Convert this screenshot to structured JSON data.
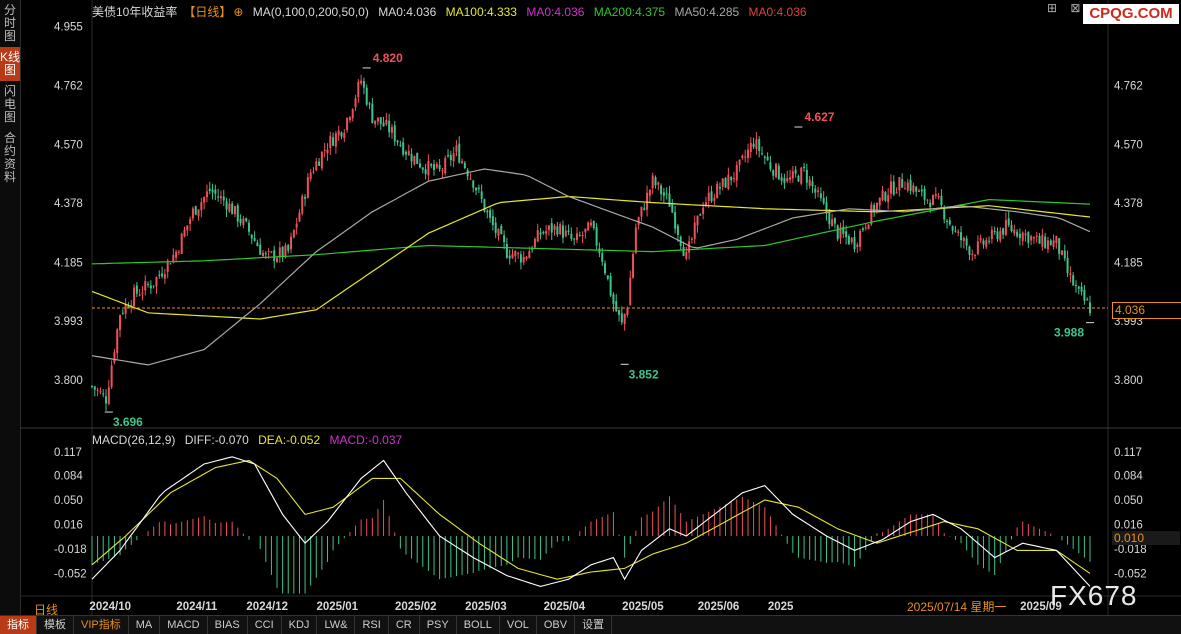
{
  "left_tabs": [
    "分时图",
    "K线图",
    "闪电图",
    "合约资料"
  ],
  "title": "美债10年收益率",
  "period_tag": "【日线】",
  "ma_legend": [
    {
      "label": "MA(0,100,0,200,50,0)",
      "color": "#d8d8d8"
    },
    {
      "label": "MA0:4.036",
      "color": "#d8d8d8"
    },
    {
      "label": "MA100:4.333",
      "color": "#e6e62c"
    },
    {
      "label": "MA0:4.036",
      "color": "#d030d0"
    },
    {
      "label": "MA200:4.375",
      "color": "#2ec82e"
    },
    {
      "label": "MA50:4.285",
      "color": "#a8a8a8"
    },
    {
      "label": "MA0:4.036",
      "color": "#e04040"
    }
  ],
  "macd_legend": [
    {
      "label": "MACD(26,12,9)",
      "color": "#d8d8d8"
    },
    {
      "label": "DIFF:-0.070",
      "color": "#d8d8d8"
    },
    {
      "label": "DEA:-0.052",
      "color": "#e6e62c"
    },
    {
      "label": "MACD:-0.037",
      "color": "#d030d0"
    }
  ],
  "watermark_logo": "CPQG.COM",
  "watermark_fx": "FX678",
  "current_price": "4.036",
  "macd_marker": "0.010",
  "crosshair_date": "2025/07/14 星期一",
  "period_label": "日线",
  "bottom_tabs": [
    "指标",
    "模板",
    "VIP指标",
    "MA",
    "MACD",
    "BIAS",
    "CCI",
    "KDJ",
    "LW&",
    "RSI",
    "CR",
    "PSY",
    "BOLL",
    "VOL",
    "OBV",
    "设置"
  ],
  "colors": {
    "up": "#f0505a",
    "down": "#3cc48c",
    "ma100": "#e6e62c",
    "ma200": "#2ec82e",
    "ma50": "#a8a8a8",
    "dea": "#e6e62c",
    "diff": "#ffffff",
    "current": "#e8901c"
  },
  "chart_data": [
    {
      "type": "candlestick",
      "title": "美债10年收益率",
      "y_ticks": [
        4.955,
        4.762,
        4.57,
        4.378,
        4.185,
        3.993,
        3.8
      ],
      "ylim": [
        3.67,
        4.97
      ],
      "x_ticks": [
        "2024/10",
        "2024/11",
        "2024/12",
        "2025/01",
        "2025/02",
        "2025/03",
        "2025/04",
        "2025/05",
        "2025/06",
        "2025",
        "2025/09"
      ],
      "annotations": [
        {
          "text": "4.820",
          "value": 4.82,
          "color": "#f0505a"
        },
        {
          "text": "4.627",
          "value": 4.627,
          "color": "#f0505a"
        },
        {
          "text": "3.696",
          "value": 3.696,
          "color": "#3cc48c"
        },
        {
          "text": "3.852",
          "value": 3.852,
          "color": "#3cc48c"
        },
        {
          "text": "3.988",
          "value": 3.988,
          "color": "#3cc48c"
        }
      ],
      "close_keypoints": [
        [
          0,
          3.78
        ],
        [
          5,
          3.74
        ],
        [
          10,
          4.02
        ],
        [
          15,
          4.08
        ],
        [
          22,
          4.12
        ],
        [
          30,
          4.22
        ],
        [
          36,
          4.35
        ],
        [
          42,
          4.42
        ],
        [
          48,
          4.38
        ],
        [
          55,
          4.3
        ],
        [
          62,
          4.2
        ],
        [
          70,
          4.22
        ],
        [
          78,
          4.48
        ],
        [
          84,
          4.57
        ],
        [
          90,
          4.63
        ],
        [
          96,
          4.78
        ],
        [
          100,
          4.66
        ],
        [
          106,
          4.62
        ],
        [
          112,
          4.55
        ],
        [
          118,
          4.5
        ],
        [
          124,
          4.48
        ],
        [
          130,
          4.55
        ],
        [
          136,
          4.45
        ],
        [
          142,
          4.32
        ],
        [
          148,
          4.22
        ],
        [
          154,
          4.2
        ],
        [
          160,
          4.28
        ],
        [
          166,
          4.3
        ],
        [
          172,
          4.25
        ],
        [
          178,
          4.3
        ],
        [
          182,
          4.2
        ],
        [
          186,
          4.05
        ],
        [
          189,
          3.98
        ],
        [
          191,
          4.05
        ],
        [
          194,
          4.3
        ],
        [
          200,
          4.45
        ],
        [
          206,
          4.38
        ],
        [
          212,
          4.2
        ],
        [
          218,
          4.38
        ],
        [
          224,
          4.43
        ],
        [
          230,
          4.48
        ],
        [
          236,
          4.58
        ],
        [
          242,
          4.5
        ],
        [
          248,
          4.45
        ],
        [
          254,
          4.48
        ],
        [
          260,
          4.38
        ],
        [
          266,
          4.28
        ],
        [
          272,
          4.25
        ],
        [
          278,
          4.35
        ],
        [
          284,
          4.42
        ],
        [
          290,
          4.45
        ],
        [
          296,
          4.4
        ],
        [
          302,
          4.38
        ],
        [
          308,
          4.28
        ],
        [
          314,
          4.22
        ],
        [
          320,
          4.26
        ],
        [
          326,
          4.3
        ],
        [
          332,
          4.28
        ],
        [
          338,
          4.25
        ],
        [
          344,
          4.25
        ],
        [
          348,
          4.15
        ],
        [
          352,
          4.08
        ],
        [
          356,
          4.036
        ]
      ],
      "ma100_keypoints": [
        [
          0,
          4.09
        ],
        [
          20,
          4.02
        ],
        [
          60,
          4.0
        ],
        [
          80,
          4.03
        ],
        [
          120,
          4.28
        ],
        [
          145,
          4.38
        ],
        [
          170,
          4.4
        ],
        [
          200,
          4.38
        ],
        [
          240,
          4.36
        ],
        [
          280,
          4.35
        ],
        [
          320,
          4.37
        ],
        [
          356,
          4.333
        ]
      ],
      "ma200_keypoints": [
        [
          0,
          4.18
        ],
        [
          40,
          4.19
        ],
        [
          80,
          4.21
        ],
        [
          120,
          4.24
        ],
        [
          160,
          4.23
        ],
        [
          200,
          4.22
        ],
        [
          240,
          4.24
        ],
        [
          280,
          4.32
        ],
        [
          320,
          4.39
        ],
        [
          356,
          4.375
        ]
      ],
      "ma50_keypoints": [
        [
          0,
          3.88
        ],
        [
          20,
          3.85
        ],
        [
          40,
          3.9
        ],
        [
          60,
          4.05
        ],
        [
          80,
          4.22
        ],
        [
          100,
          4.35
        ],
        [
          120,
          4.45
        ],
        [
          140,
          4.49
        ],
        [
          155,
          4.47
        ],
        [
          170,
          4.4
        ],
        [
          185,
          4.35
        ],
        [
          200,
          4.3
        ],
        [
          215,
          4.23
        ],
        [
          230,
          4.26
        ],
        [
          250,
          4.33
        ],
        [
          270,
          4.36
        ],
        [
          290,
          4.35
        ],
        [
          310,
          4.37
        ],
        [
          330,
          4.35
        ],
        [
          345,
          4.33
        ],
        [
          356,
          4.285
        ]
      ],
      "current_value": 4.036
    },
    {
      "type": "macd",
      "title": "MACD(26,12,9)",
      "y_ticks": [
        0.117,
        0.084,
        0.05,
        0.016,
        -0.018,
        -0.052
      ],
      "ylim": [
        -0.075,
        0.125
      ],
      "diff": -0.07,
      "dea": -0.052,
      "macd": -0.037,
      "marker_value": 0.01,
      "diff_keypoints": [
        [
          0,
          -0.06
        ],
        [
          10,
          -0.02
        ],
        [
          25,
          0.06
        ],
        [
          40,
          0.1
        ],
        [
          50,
          0.11
        ],
        [
          58,
          0.1
        ],
        [
          68,
          0.03
        ],
        [
          76,
          -0.01
        ],
        [
          84,
          0.02
        ],
        [
          96,
          0.08
        ],
        [
          104,
          0.105
        ],
        [
          112,
          0.06
        ],
        [
          124,
          0.0
        ],
        [
          136,
          -0.03
        ],
        [
          148,
          -0.055
        ],
        [
          160,
          -0.07
        ],
        [
          170,
          -0.06
        ],
        [
          178,
          -0.04
        ],
        [
          186,
          -0.03
        ],
        [
          190,
          -0.06
        ],
        [
          196,
          -0.02
        ],
        [
          206,
          0.01
        ],
        [
          212,
          0.0
        ],
        [
          222,
          0.03
        ],
        [
          232,
          0.06
        ],
        [
          240,
          0.07
        ],
        [
          250,
          0.03
        ],
        [
          262,
          0.0
        ],
        [
          272,
          -0.02
        ],
        [
          282,
          -0.005
        ],
        [
          292,
          0.02
        ],
        [
          300,
          0.03
        ],
        [
          310,
          0.01
        ],
        [
          322,
          -0.03
        ],
        [
          332,
          -0.01
        ],
        [
          344,
          -0.02
        ],
        [
          356,
          -0.07
        ]
      ],
      "dea_keypoints": [
        [
          0,
          -0.04
        ],
        [
          12,
          0.0
        ],
        [
          28,
          0.06
        ],
        [
          44,
          0.095
        ],
        [
          56,
          0.105
        ],
        [
          66,
          0.08
        ],
        [
          76,
          0.03
        ],
        [
          86,
          0.04
        ],
        [
          100,
          0.08
        ],
        [
          110,
          0.08
        ],
        [
          124,
          0.03
        ],
        [
          138,
          -0.01
        ],
        [
          152,
          -0.045
        ],
        [
          166,
          -0.06
        ],
        [
          178,
          -0.05
        ],
        [
          190,
          -0.045
        ],
        [
          200,
          -0.025
        ],
        [
          212,
          -0.01
        ],
        [
          226,
          0.02
        ],
        [
          240,
          0.05
        ],
        [
          252,
          0.04
        ],
        [
          266,
          0.01
        ],
        [
          280,
          -0.01
        ],
        [
          292,
          0.005
        ],
        [
          304,
          0.02
        ],
        [
          316,
          0.01
        ],
        [
          330,
          -0.02
        ],
        [
          344,
          -0.02
        ],
        [
          356,
          -0.052
        ]
      ]
    }
  ]
}
